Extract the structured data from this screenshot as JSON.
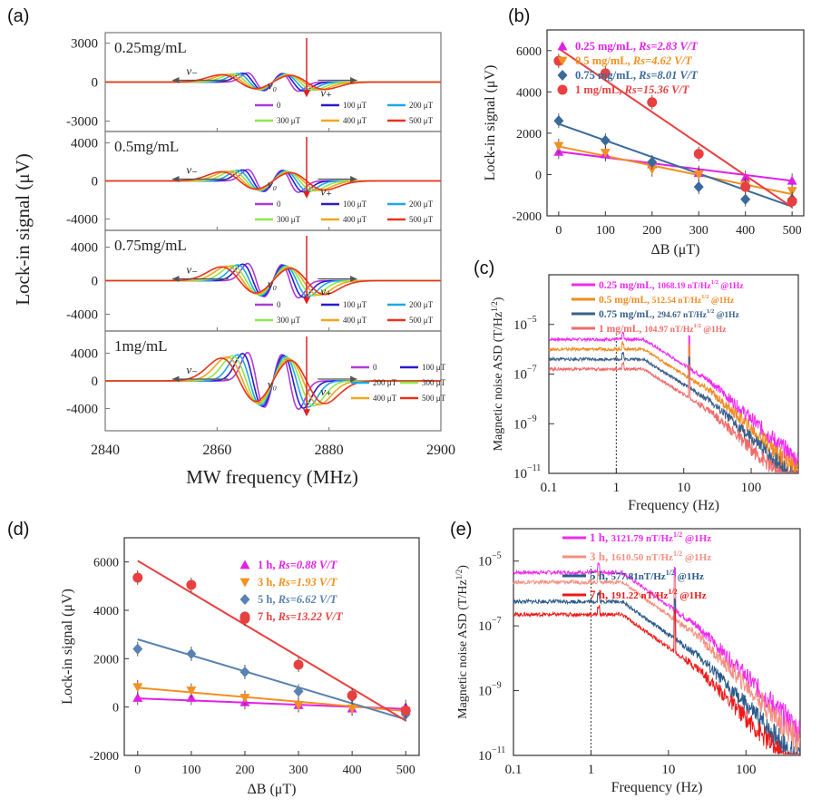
{
  "chart_data": [
    {
      "panel": "(a)",
      "type": "line",
      "xlabel": "MW frequency (MHz)",
      "ylabel": "Lock-in signal (μV)",
      "xlim": [
        2840,
        2900
      ],
      "xticks": [
        "2840",
        "2860",
        "2880",
        "2900"
      ],
      "field_labels": [
        "0",
        "100 μT",
        "200 μT",
        "300 μT",
        "400 μT",
        "500 μT"
      ],
      "field_colors": [
        "#b03ad8",
        "#2a1bd0",
        "#1fa6e8",
        "#8ee84c",
        "#f2a51c",
        "#e8321c"
      ],
      "peak_labels": {
        "v1": "ν₋",
        "v0": "ν₀",
        "v2": "ν₊"
      },
      "subplots": [
        {
          "label": "0.25mg/mL",
          "amp": 1000,
          "ylim": [
            -3800,
            3800
          ],
          "yticks": [
            "3000",
            "0",
            "-3000"
          ],
          "ytick_values": [
            3000,
            0,
            -3000
          ]
        },
        {
          "label": "0.5mg/mL",
          "amp": 1700,
          "ylim": [
            -5200,
            5200
          ],
          "yticks": [
            "4000",
            "0",
            "-4000"
          ],
          "ytick_values": [
            4000,
            0,
            -4000
          ]
        },
        {
          "label": "0.75mg/mL",
          "amp": 2900,
          "ylim": [
            -6000,
            6000
          ],
          "yticks": [
            "4000",
            "0",
            "-4000"
          ],
          "ytick_values": [
            4000,
            0,
            -4000
          ]
        },
        {
          "label": "1mg/mL",
          "amp": 5800,
          "ylim": [
            -7200,
            7200
          ],
          "yticks": [
            "4000",
            "0",
            "-4000"
          ],
          "ytick_values": [
            4000,
            0,
            -4000
          ]
        }
      ]
    },
    {
      "panel": "(b)",
      "type": "scatter",
      "xlabel": "ΔB (μT)",
      "ylabel": "Lock-in signal (μV)",
      "xlim": [
        -25,
        525
      ],
      "ylim": [
        -2000,
        7000
      ],
      "xticks": [
        0,
        100,
        200,
        300,
        400,
        500
      ],
      "yticks": [
        -2000,
        0,
        2000,
        4000,
        6000
      ],
      "x": [
        0,
        100,
        200,
        300,
        400,
        500
      ],
      "series": [
        {
          "name": "0.25 mg/mL, ",
          "rs_label": "Rs=2.83 V/T",
          "marker": "triangle-up",
          "color": "#e020e8",
          "values": [
            1100,
            980,
            500,
            80,
            -150,
            -300
          ],
          "fit": [
            1110,
            -2.83
          ]
        },
        {
          "name": "0.5 mg/mL, ",
          "rs_label": "Rs=4.62 V/T",
          "marker": "triangle-down",
          "color": "#f29020",
          "values": [
            1380,
            1050,
            250,
            0,
            -500,
            -800
          ],
          "fit": [
            1360,
            -4.62
          ]
        },
        {
          "name": "0.75 mg/mL, ",
          "rs_label": "Rs=8.01 V/T",
          "marker": "diamond",
          "color": "#3a6a9a",
          "values": [
            2600,
            1650,
            600,
            -600,
            -1200,
            -1200
          ],
          "fit": [
            2450,
            -8.01
          ]
        },
        {
          "name": "1 mg/mL, ",
          "rs_label": "Rs=15.36 V/T",
          "marker": "circle",
          "color": "#e84040",
          "values": [
            5500,
            4900,
            3500,
            1000,
            -600,
            -1300
          ],
          "fit": [
            6100,
            -15.36
          ]
        }
      ]
    },
    {
      "panel": "(c)",
      "type": "line",
      "xlabel": "Frequency (Hz)",
      "ylabel": "Magnetic noise ASD (T/Hz^1/2)",
      "xscale": "log",
      "yscale": "log",
      "xlim": [
        0.1,
        500
      ],
      "ylim_exp": [
        -11,
        -3
      ],
      "xticks": [
        "0.1",
        "1",
        "10",
        "100"
      ],
      "ytick_exps": [
        -11,
        -9,
        -7,
        -5
      ],
      "marker_line_x": 1,
      "series": [
        {
          "name": "0.25 mg/mL, ",
          "value_label": "1068.19 nT/Hz",
          "suffix": " @1Hz",
          "color": "#f02af0",
          "level_exp": -5.6
        },
        {
          "name": "0.5 mg/mL, ",
          "value_label": "512.54 nT/Hz",
          "suffix": " @1Hz",
          "color": "#f28a20",
          "level_exp": -6.0
        },
        {
          "name": "0.75 mg/mL, ",
          "value_label": "294.67 nT/Hz",
          "suffix": " @1Hz",
          "color": "#3a5f8a",
          "level_exp": -6.4
        },
        {
          "name": "1 mg/mL, ",
          "value_label": "104.97 nT/Hz",
          "suffix": " @1Hz",
          "color": "#f06a6a",
          "level_exp": -6.8
        }
      ]
    },
    {
      "panel": "(d)",
      "type": "scatter",
      "xlabel": "ΔB (μT)",
      "ylabel": "Lock-in signal (μV)",
      "xlim": [
        -25,
        525
      ],
      "ylim": [
        -2000,
        7000
      ],
      "xticks": [
        0,
        100,
        200,
        300,
        400,
        500
      ],
      "yticks": [
        -2000,
        0,
        2000,
        4000,
        6000
      ],
      "x": [
        0,
        100,
        200,
        300,
        400,
        500
      ],
      "series": [
        {
          "name": "1 h, ",
          "rs_label": "Rs=0.88 V/T",
          "marker": "triangle-up",
          "color": "#e020e8",
          "values": [
            380,
            380,
            200,
            80,
            -60,
            0
          ],
          "fit": [
            360,
            -0.88
          ]
        },
        {
          "name": "3 h, ",
          "rs_label": "Rs=1.93 V/T",
          "marker": "triangle-down",
          "color": "#f29020",
          "values": [
            820,
            680,
            380,
            80,
            -60,
            -150
          ],
          "fit": [
            800,
            -1.93
          ]
        },
        {
          "name": "5 h, ",
          "rs_label": "Rs=6.62 V/T",
          "marker": "diamond",
          "color": "#5a82b0",
          "values": [
            2400,
            2200,
            1450,
            650,
            420,
            -300
          ],
          "fit": [
            2800,
            -6.62
          ]
        },
        {
          "name": "7 h, ",
          "rs_label": "Rs=13.22 V/T",
          "marker": "circle",
          "color": "#e84040",
          "values": [
            5350,
            5050,
            3650,
            1750,
            480,
            -150
          ],
          "fit": [
            6050,
            -13.22
          ]
        }
      ]
    },
    {
      "panel": "(e)",
      "type": "line",
      "xlabel": "Frequency (Hz)",
      "ylabel": "Magnetic noise ASD (T/Hz^1/2)",
      "xscale": "log",
      "yscale": "log",
      "xlim": [
        0.1,
        500
      ],
      "ylim_exp": [
        -11,
        -4
      ],
      "xticks": [
        "0.1",
        "1",
        "10",
        "100"
      ],
      "ytick_exps": [
        -11,
        -9,
        -7,
        -5
      ],
      "marker_line_x": 1,
      "series": [
        {
          "name": "1 h, ",
          "value_label": "3121.79 nT/Hz",
          "suffix": " @1Hz",
          "color": "#f02af0",
          "level_exp": -5.35
        },
        {
          "name": "3 h, ",
          "value_label": "1610.50 nT/Hz",
          "suffix": " @1Hz",
          "color": "#f59080",
          "level_exp": -5.65
        },
        {
          "name": "5 h, ",
          "value_label": "577.81nT/Hz",
          "suffix": " @1Hz",
          "color": "#2a5a8a",
          "level_exp": -6.25
        },
        {
          "name": "7 h, ",
          "value_label": "191.22 nT/Hz",
          "suffix": " @1Hz",
          "color": "#f01818",
          "level_exp": -6.65
        }
      ]
    }
  ],
  "text": {
    "label_a": "(a)",
    "label_b": "(b)",
    "label_c": "(c)",
    "label_d": "(d)",
    "label_e": "(e)",
    "ten": "10",
    "half_exp": "1/2",
    "minus": "−"
  }
}
